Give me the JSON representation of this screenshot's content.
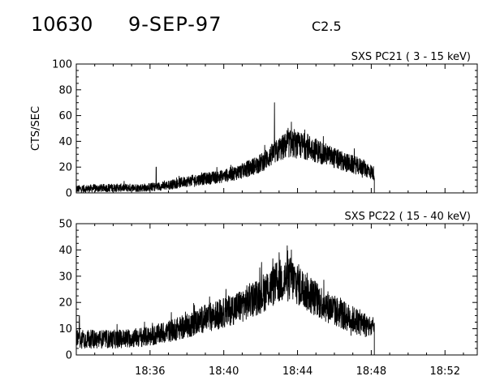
{
  "header": {
    "event_id": "10630",
    "date": "9-SEP-97",
    "flare_class": "C2.5"
  },
  "chart_data": [
    {
      "type": "line",
      "title": "SXS PC21  (  3 - 15 keV)",
      "ylabel": "CTS/SEC",
      "xlabel": "",
      "xlim": [
        "18:32:00",
        "18:53:45"
      ],
      "ylim": [
        0,
        100
      ],
      "yticks": [
        0,
        20,
        40,
        60,
        80,
        100
      ],
      "ytick_labels": [
        "0",
        "20",
        "40",
        "60",
        "80",
        "100"
      ],
      "xticks": [
        "18:36",
        "18:40",
        "18:44",
        "18:48",
        "18:52"
      ],
      "show_xtick_labels": false,
      "grid": false,
      "line_color": "#000000",
      "series": [
        {
          "time": [
            "18:32:00",
            "18:34:00",
            "18:35:30",
            "18:36:30",
            "18:37:00",
            "18:38:00",
            "18:39:00",
            "18:40:00",
            "18:41:00",
            "18:42:00",
            "18:42:45",
            "18:43:30",
            "18:44:30",
            "18:45:30",
            "18:46:30",
            "18:47:30",
            "18:48:10",
            "18:48:12"
          ],
          "values": [
            3,
            4,
            4,
            5,
            6,
            9,
            11,
            13,
            17,
            23,
            31,
            38,
            36,
            30,
            24,
            20,
            15,
            0
          ],
          "spikes": [
            {
              "time": "18:36:20",
              "value": 20
            },
            {
              "time": "18:42:45",
              "value": 70
            },
            {
              "time": "18:43:40",
              "value": 55
            }
          ]
        }
      ]
    },
    {
      "type": "line",
      "title": "SXS PC22  ( 15 - 40 keV)",
      "ylabel": "",
      "xlabel": "",
      "xlim": [
        "18:32:00",
        "18:53:45"
      ],
      "ylim": [
        0,
        50
      ],
      "yticks": [
        0,
        10,
        20,
        30,
        40,
        50
      ],
      "ytick_labels": [
        "0",
        "10",
        "20",
        "30",
        "40",
        "50"
      ],
      "xticks": [
        "18:36",
        "18:40",
        "18:44",
        "18:48",
        "18:52"
      ],
      "xtick_labels": [
        "18:36",
        "18:40",
        "18:44",
        "18:48",
        "18:52"
      ],
      "show_xtick_labels": true,
      "grid": false,
      "line_color": "#000000",
      "series": [
        {
          "time": [
            "18:32:00",
            "18:34:00",
            "18:36:00",
            "18:37:00",
            "18:38:00",
            "18:39:00",
            "18:40:00",
            "18:41:00",
            "18:42:00",
            "18:43:00",
            "18:43:40",
            "18:44:30",
            "18:45:30",
            "18:46:30",
            "18:47:30",
            "18:48:10",
            "18:48:12"
          ],
          "values": [
            6,
            6,
            7,
            9,
            11,
            14,
            16,
            19,
            23,
            28,
            29,
            24,
            19,
            15,
            12,
            10,
            0
          ],
          "spikes": [
            {
              "time": "18:32:10",
              "value": 15
            },
            {
              "time": "18:43:00",
              "value": 39
            },
            {
              "time": "18:43:40",
              "value": 40
            }
          ]
        }
      ]
    }
  ]
}
